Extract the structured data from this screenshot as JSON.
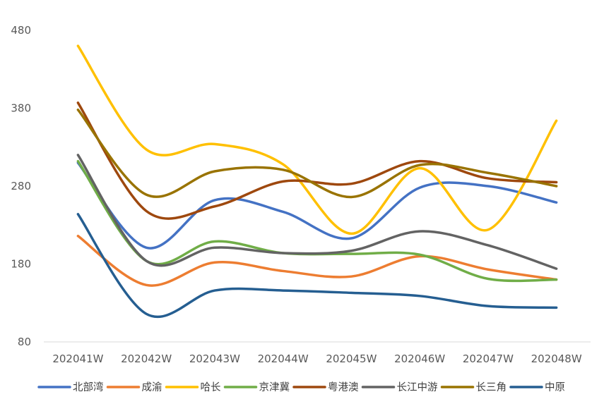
{
  "chart_data": {
    "type": "line",
    "smooth": true,
    "title": "",
    "xlabel": "",
    "ylabel": "",
    "categories": [
      "202041W",
      "202042W",
      "202043W",
      "202044W",
      "202045W",
      "202046W",
      "202047W",
      "202048W"
    ],
    "ylim": [
      80,
      480
    ],
    "yticks": [
      80,
      180,
      280,
      380,
      480
    ],
    "grid": false,
    "legend_position": "bottom",
    "series": [
      {
        "name": "北部湾",
        "color": "#4472C4",
        "values": [
          310,
          201,
          262,
          247,
          213,
          278,
          280,
          259
        ]
      },
      {
        "name": "成渝",
        "color": "#ED7D31",
        "values": [
          216,
          153,
          182,
          171,
          164,
          190,
          173,
          160
        ]
      },
      {
        "name": "哈长",
        "color": "#FFC000",
        "values": [
          460,
          327,
          334,
          308,
          219,
          303,
          224,
          364
        ]
      },
      {
        "name": "京津冀",
        "color": "#70AD47",
        "values": [
          312,
          184,
          209,
          194,
          193,
          192,
          161,
          160
        ]
      },
      {
        "name": "粤港澳",
        "color": "#9E480E",
        "values": [
          387,
          248,
          254,
          286,
          283,
          312,
          290,
          285
        ]
      },
      {
        "name": "长江中游",
        "color": "#636363",
        "values": [
          320,
          184,
          201,
          194,
          197,
          222,
          204,
          174
        ]
      },
      {
        "name": "长三角",
        "color": "#997300",
        "values": [
          378,
          269,
          299,
          301,
          266,
          307,
          297,
          280
        ]
      },
      {
        "name": "中原",
        "color": "#255E91",
        "values": [
          244,
          116,
          146,
          146,
          143,
          139,
          126,
          124
        ]
      }
    ]
  }
}
